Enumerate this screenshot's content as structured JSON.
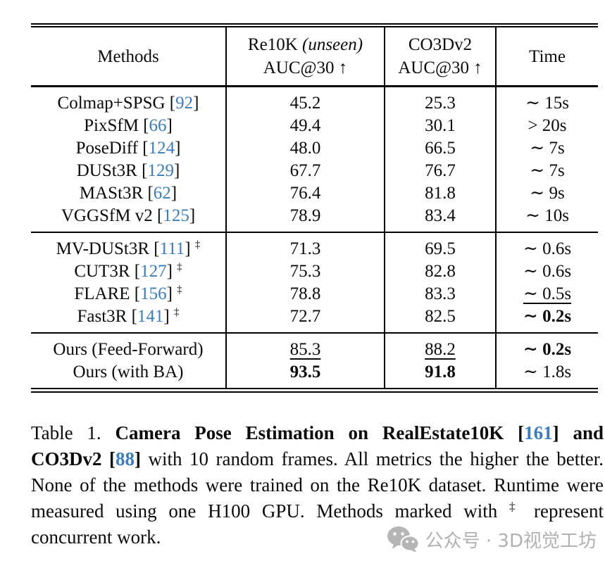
{
  "table": {
    "header": {
      "methods": "Methods",
      "re10k_line1_pre": "Re10K ",
      "re10k_line1_italic": "(unseen)",
      "re10k_line2": "AUC@30 ↑",
      "co3d_line1": "CO3Dv2",
      "co3d_line2": "AUC@30 ↑",
      "time": "Time"
    },
    "blocks": [
      {
        "rows": [
          {
            "method": "Colmap+SPSG",
            "cite": "92",
            "dagger": false,
            "re10k": {
              "text": "45.2",
              "style": "normal"
            },
            "co3d": {
              "text": "25.3",
              "style": "normal"
            },
            "time": {
              "text": "∼ 15s",
              "style": "normal"
            }
          },
          {
            "method": "PixSfM",
            "cite": "66",
            "dagger": false,
            "re10k": {
              "text": "49.4",
              "style": "normal"
            },
            "co3d": {
              "text": "30.1",
              "style": "normal"
            },
            "time": {
              "text": "> 20s",
              "style": "normal"
            }
          },
          {
            "method": "PoseDiff",
            "cite": "124",
            "dagger": false,
            "re10k": {
              "text": "48.0",
              "style": "normal"
            },
            "co3d": {
              "text": "66.5",
              "style": "normal"
            },
            "time": {
              "text": "∼ 7s",
              "style": "normal"
            }
          },
          {
            "method": "DUSt3R",
            "cite": "129",
            "dagger": false,
            "re10k": {
              "text": "67.7",
              "style": "normal"
            },
            "co3d": {
              "text": "76.7",
              "style": "normal"
            },
            "time": {
              "text": "∼ 7s",
              "style": "normal"
            }
          },
          {
            "method": "MASt3R",
            "cite": "62",
            "dagger": false,
            "re10k": {
              "text": "76.4",
              "style": "normal"
            },
            "co3d": {
              "text": "81.8",
              "style": "normal"
            },
            "time": {
              "text": "∼ 9s",
              "style": "normal"
            }
          },
          {
            "method": "VGGSfM v2",
            "cite": "125",
            "dagger": false,
            "re10k": {
              "text": "78.9",
              "style": "normal"
            },
            "co3d": {
              "text": "83.4",
              "style": "normal"
            },
            "time": {
              "text": "∼ 10s",
              "style": "normal"
            }
          }
        ]
      },
      {
        "rows": [
          {
            "method": "MV-DUSt3R",
            "cite": "111",
            "dagger": true,
            "re10k": {
              "text": "71.3",
              "style": "normal"
            },
            "co3d": {
              "text": "69.5",
              "style": "normal"
            },
            "time": {
              "text": "∼ 0.6s",
              "style": "normal"
            }
          },
          {
            "method": "CUT3R",
            "cite": "127",
            "dagger": true,
            "re10k": {
              "text": "75.3",
              "style": "normal"
            },
            "co3d": {
              "text": "82.8",
              "style": "normal"
            },
            "time": {
              "text": "∼ 0.6s",
              "style": "normal"
            }
          },
          {
            "method": "FLARE",
            "cite": "156",
            "dagger": true,
            "re10k": {
              "text": "78.8",
              "style": "normal"
            },
            "co3d": {
              "text": "83.3",
              "style": "normal"
            },
            "time": {
              "text": "∼ 0.5s",
              "style": "underline"
            }
          },
          {
            "method": "Fast3R",
            "cite": "141",
            "dagger": true,
            "re10k": {
              "text": "72.7",
              "style": "normal"
            },
            "co3d": {
              "text": "82.5",
              "style": "normal"
            },
            "time": {
              "text": "∼ 0.2s",
              "style": "bold"
            }
          }
        ]
      },
      {
        "rows": [
          {
            "method": "Ours (Feed-Forward)",
            "cite": null,
            "dagger": false,
            "re10k": {
              "text": "85.3",
              "style": "underline"
            },
            "co3d": {
              "text": "88.2",
              "style": "underline"
            },
            "time": {
              "text": "∼ 0.2s",
              "style": "bold"
            }
          },
          {
            "method": "Ours (with BA)",
            "cite": null,
            "dagger": false,
            "re10k": {
              "text": "93.5",
              "style": "bold"
            },
            "co3d": {
              "text": "91.8",
              "style": "bold"
            },
            "time": {
              "text": "∼ 1.8s",
              "style": "normal"
            }
          }
        ]
      }
    ]
  },
  "caption": {
    "segments": [
      {
        "text": "Table 1. "
      },
      {
        "text": "Camera Pose Estimation on RealEstate10K [",
        "bold": true
      },
      {
        "text": "161",
        "bold": true,
        "cite": true
      },
      {
        "text": "] and CO3Dv2 [",
        "bold": true
      },
      {
        "text": "88",
        "bold": true,
        "cite": true
      },
      {
        "text": "]",
        "bold": true
      },
      {
        "text": " with 10 random frames. All metrics the higher the better. None of the methods were trained on the Re10K dataset. Runtime were measured using one H100 GPU. Methods marked with "
      },
      {
        "text": "‡",
        "sup": true
      },
      {
        "text": " represent concurrent work."
      }
    ]
  },
  "watermark": {
    "icon": "wechat-icon",
    "text": "公众号 · 3D视觉工坊"
  }
}
